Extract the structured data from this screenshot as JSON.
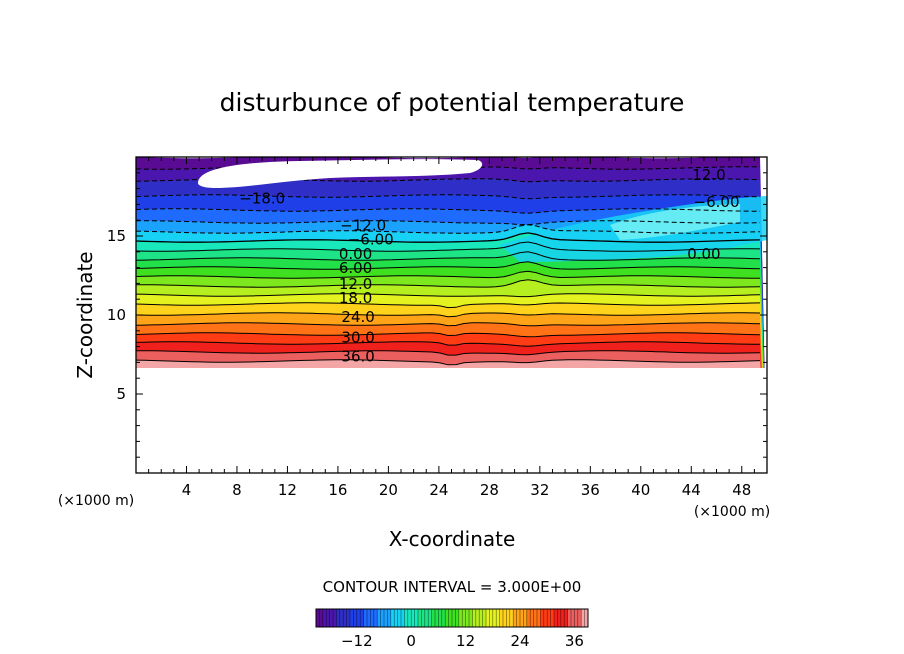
{
  "chart_data": {
    "type": "contour",
    "title": "disturbunce of potential temperature",
    "xlabel": "X-coordinate",
    "ylabel": "Z-coordinate",
    "x_unit": "(×1000 m)",
    "y_unit": "(×1000 m)",
    "xlim": [
      0,
      50
    ],
    "ylim": [
      0,
      20
    ],
    "x_ticks": [
      4,
      8,
      12,
      16,
      20,
      24,
      28,
      32,
      36,
      40,
      44,
      48
    ],
    "y_ticks": [
      5,
      10,
      15
    ],
    "contour_interval_text": "CONTOUR INTERVAL = 3.000E+00",
    "contour_interval": 3,
    "colorbar": {
      "min": -21,
      "max": 39,
      "tick_values": [
        -12,
        0,
        12,
        24,
        36
      ],
      "tick_labels": [
        "−12",
        "0",
        "12",
        "24",
        "36"
      ]
    },
    "contour_labels": [
      {
        "text": "−18.0",
        "x": 10.0,
        "z": 17.3
      },
      {
        "text": "−12.0",
        "x": 18.0,
        "z": 15.6
      },
      {
        "text": "−6.00",
        "x": 18.6,
        "z": 14.7
      },
      {
        "text": "0.00",
        "x": 17.4,
        "z": 13.8
      },
      {
        "text": "6.00",
        "x": 17.4,
        "z": 12.9
      },
      {
        "text": "12.0",
        "x": 17.4,
        "z": 11.9
      },
      {
        "text": "18.0",
        "x": 17.4,
        "z": 11.0
      },
      {
        "text": "24.0",
        "x": 17.6,
        "z": 9.8
      },
      {
        "text": "30.0",
        "x": 17.6,
        "z": 8.5
      },
      {
        "text": "36.0",
        "x": 17.6,
        "z": 7.3
      },
      {
        "text": "12.0",
        "x": 45.4,
        "z": 18.8
      },
      {
        "text": "−6.00",
        "x": 46.0,
        "z": 17.1
      },
      {
        "text": "0.00",
        "x": 45.0,
        "z": 13.8
      }
    ],
    "levels": [
      {
        "value": -21,
        "color": "#5a0b93"
      },
      {
        "value": -18,
        "color": "#4b16ad"
      },
      {
        "value": -15,
        "color": "#2f2fc8"
      },
      {
        "value": -12,
        "color": "#1f3fe8"
      },
      {
        "value": -9,
        "color": "#1f6aff"
      },
      {
        "value": -6,
        "color": "#1ba2ff"
      },
      {
        "value": -3,
        "color": "#18d2f5"
      },
      {
        "value": 0,
        "color": "#18e8bc"
      },
      {
        "value": 3,
        "color": "#1de486"
      },
      {
        "value": 6,
        "color": "#22e04a"
      },
      {
        "value": 9,
        "color": "#3ee01f"
      },
      {
        "value": 12,
        "color": "#7ee81f"
      },
      {
        "value": 15,
        "color": "#b5ef1f"
      },
      {
        "value": 18,
        "color": "#e4f21f"
      },
      {
        "value": 21,
        "color": "#ffd21b"
      },
      {
        "value": 24,
        "color": "#ffa418"
      },
      {
        "value": 27,
        "color": "#ff7316"
      },
      {
        "value": 30,
        "color": "#ff3c14"
      },
      {
        "value": 33,
        "color": "#f0201d"
      },
      {
        "value": 36,
        "color": "#ec5f5f"
      },
      {
        "value": 39,
        "color": "#f4a6a6"
      }
    ]
  }
}
